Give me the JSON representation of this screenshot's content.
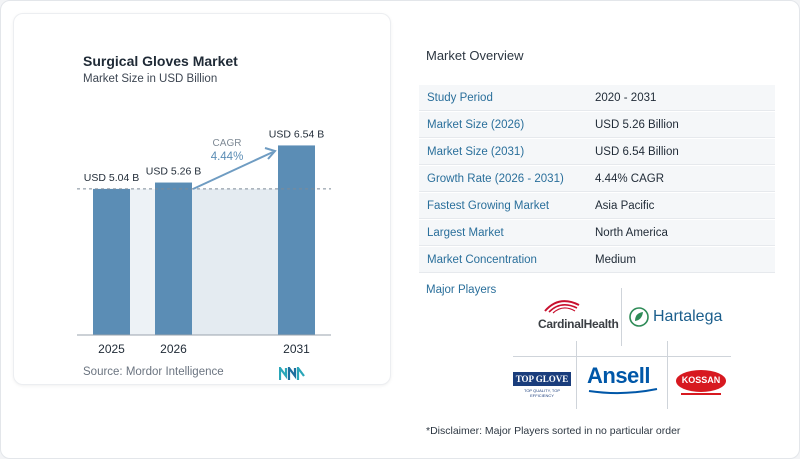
{
  "chart_card": {
    "title": "Surgical Gloves Market",
    "subtitle": "Market Size in USD Billion",
    "source": "Source:  Mordor Intelligence"
  },
  "chart_data": {
    "type": "bar",
    "title": "Surgical Gloves Market",
    "subtitle": "Market Size in USD Billion",
    "categories": [
      "2025",
      "2026",
      "2031"
    ],
    "values": [
      5.04,
      5.26,
      6.54
    ],
    "data_labels": [
      "USD 5.04 B",
      "USD 5.26 B",
      "USD 6.54 B"
    ],
    "ylim": [
      0,
      6.9
    ],
    "reference_line_value": 5.04,
    "cagr_label": "CAGR",
    "cagr_value": "4.44%",
    "bar_color": "#5b8db5",
    "shade_color": "#e4ebf1",
    "grid": false
  },
  "overview": {
    "title": "Market Overview",
    "rows": [
      {
        "key": "Study Period",
        "value": "2020 - 2031"
      },
      {
        "key": "Market Size (2026)",
        "value": "USD 5.26 Billion"
      },
      {
        "key": "Market Size (2031)",
        "value": "USD 6.54 Billion"
      },
      {
        "key": "Growth Rate (2026 - 2031)",
        "value": "4.44% CAGR"
      },
      {
        "key": "Fastest Growing Market",
        "value": "Asia Pacific"
      },
      {
        "key": "Largest Market",
        "value": "North America"
      },
      {
        "key": "Market Concentration",
        "value": "Medium"
      }
    ]
  },
  "players": {
    "title": "Major Players",
    "logos": [
      "CardinalHealth",
      "Hartalega",
      "TOP GLOVE",
      "TOP QUALITY, TOP EFFICIENCY",
      "Ansell",
      "KOSSAN"
    ]
  },
  "disclaimer": "*Disclaimer: Major Players sorted in no particular order",
  "colors": {
    "accent": "#2a6f9b",
    "bar": "#5b8db5",
    "cardinal_red": "#c8102e",
    "hartalega_blue": "#1b5e8c",
    "ansell_blue": "#0057a8",
    "kossan_red": "#d71920"
  }
}
